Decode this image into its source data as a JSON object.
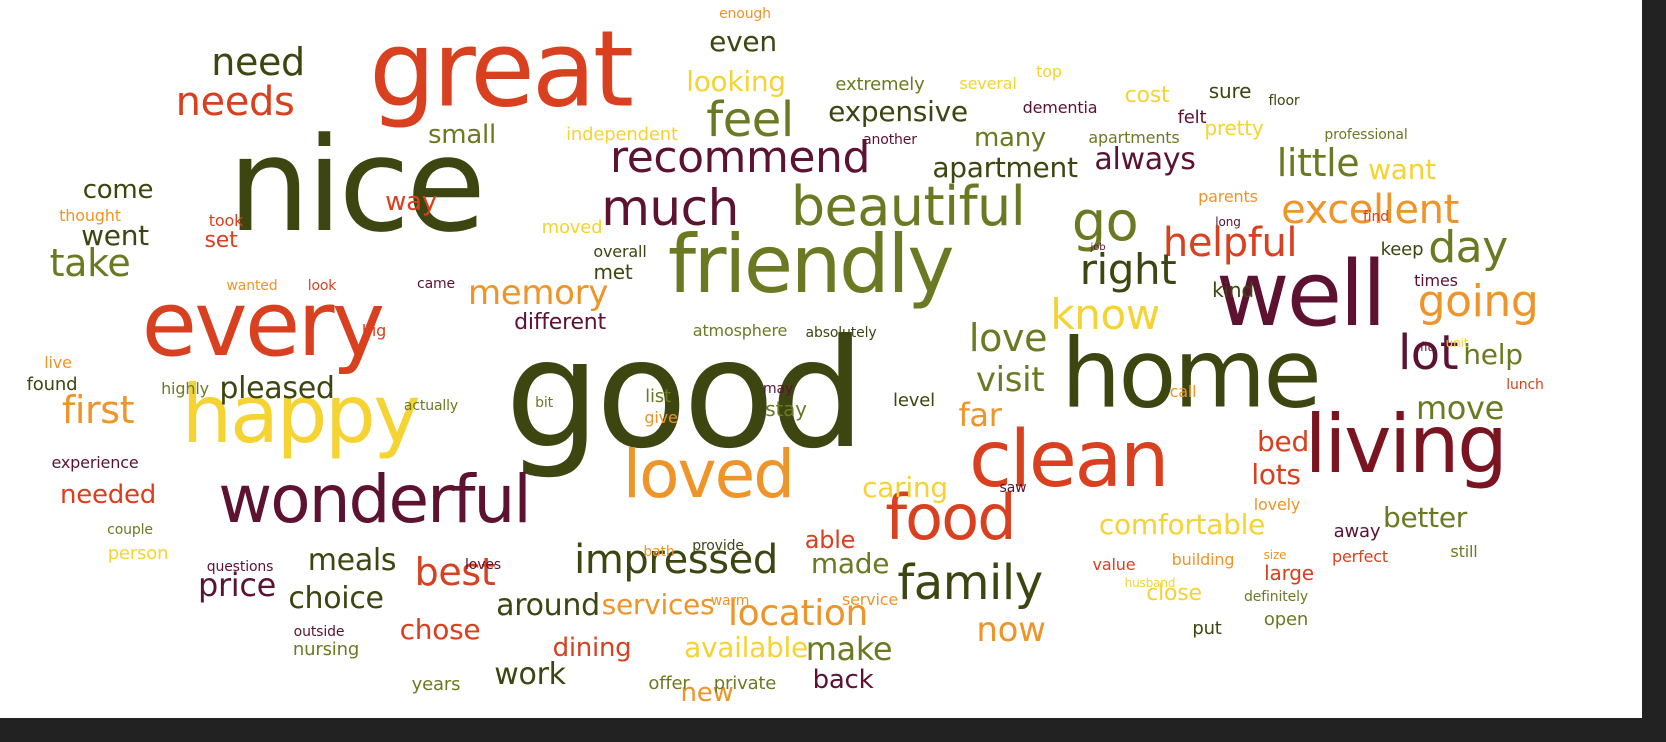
{
  "palette": {
    "dark_green": "#3d4510",
    "olive": "#6b7a22",
    "red_orange": "#d8401f",
    "orange": "#ef9428",
    "yellow": "#f5d332",
    "maroon": "#5c1230",
    "dark_red": "#7a1420",
    "background": "#ffffff"
  },
  "words": [
    "good",
    "nice",
    "great",
    "every",
    "friendly",
    "home",
    "well",
    "happy",
    "clean",
    "wonderful",
    "living",
    "loved",
    "food",
    "beautiful",
    "much",
    "recommend",
    "family",
    "feel",
    "go",
    "needs",
    "need",
    "excellent",
    "helpful",
    "right",
    "know",
    "lot",
    "going",
    "little",
    "love",
    "visit",
    "day",
    "first",
    "memory",
    "best",
    "impressed",
    "take",
    "pleased",
    "location",
    "far",
    "move",
    "even",
    "looking",
    "expensive",
    "always",
    "apartment",
    "small",
    "come",
    "went",
    "way",
    "many",
    "caring",
    "comfortable",
    "better",
    "lots",
    "bed",
    "help",
    "meals",
    "choice",
    "price",
    "around",
    "services",
    "chose",
    "made",
    "make",
    "now",
    "work",
    "dining",
    "available",
    "able",
    "needed",
    "want",
    "different",
    "close",
    "new",
    "back",
    "enough",
    "extremely",
    "several",
    "top",
    "cost",
    "sure",
    "floor",
    "felt",
    "dementia",
    "independent",
    "another",
    "apartments",
    "pretty",
    "professional",
    "thought",
    "took",
    "set",
    "moved",
    "overall",
    "met",
    "parents",
    "long",
    "find",
    "job",
    "keep",
    "kind",
    "times",
    "wanted",
    "look",
    "came",
    "atmosphere",
    "absolutely",
    "live",
    "big",
    "fit",
    "unit",
    "found",
    "highly",
    "actually",
    "bit",
    "list",
    "may",
    "give",
    "stay",
    "level",
    "call",
    "lunch",
    "experience",
    "saw",
    "couple",
    "person",
    "questions",
    "loves",
    "bath",
    "provide",
    "value",
    "building",
    "size",
    "perfect",
    "still",
    "husband",
    "lovely",
    "away",
    "warm",
    "service",
    "large",
    "definitely",
    "outside",
    "nursing",
    "put",
    "open",
    "years",
    "offer",
    "private"
  ]
}
